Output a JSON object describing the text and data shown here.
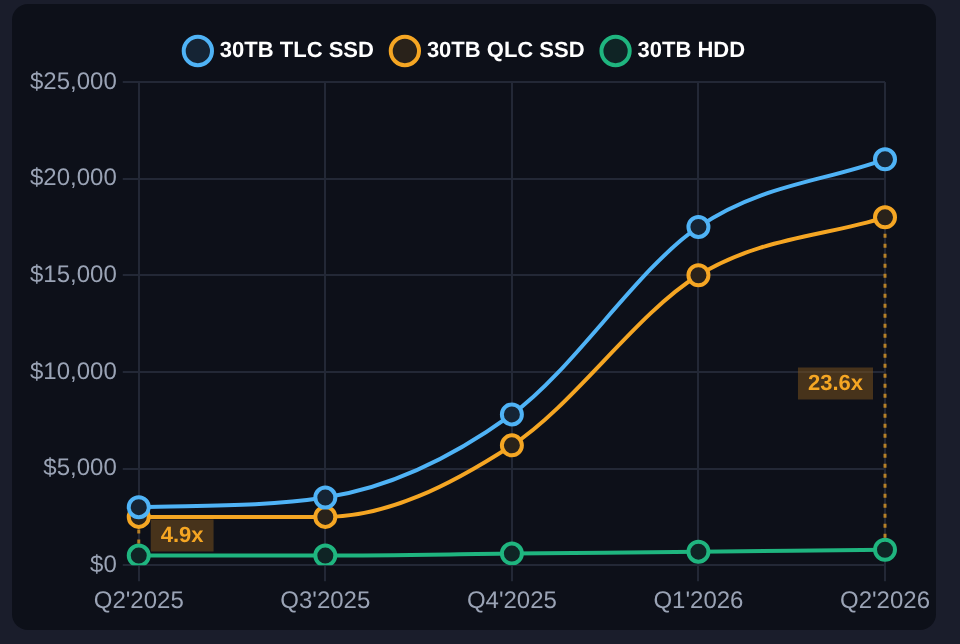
{
  "chart_data": {
    "type": "line",
    "categories": [
      "Q2'2025",
      "Q3'2025",
      "Q4'2025",
      "Q1'2026",
      "Q2'2026"
    ],
    "series": [
      {
        "name": "30TB TLC SSD",
        "color": "#4fb3f6",
        "values": [
          3000,
          3500,
          7800,
          17500,
          21000
        ]
      },
      {
        "name": "30TB QLC SSD",
        "color": "#f5a623",
        "values": [
          2500,
          2500,
          6200,
          15000,
          18000
        ]
      },
      {
        "name": "30TB HDD",
        "color": "#1fb57f",
        "values": [
          500,
          500,
          600,
          700,
          800
        ]
      }
    ],
    "ylim": [
      0,
      25000
    ],
    "yticks": [
      {
        "value": 0,
        "label": "$0"
      },
      {
        "value": 5000,
        "label": "$5,000"
      },
      {
        "value": 10000,
        "label": "$10,000"
      },
      {
        "value": 15000,
        "label": "$15,000"
      },
      {
        "value": 20000,
        "label": "$20,000"
      },
      {
        "value": 25000,
        "label": "$25,000"
      }
    ],
    "grid": true,
    "legend": "top",
    "marker": "circle",
    "line_style": "solid",
    "annotations": [
      "4.9x",
      "23.6x"
    ]
  }
}
